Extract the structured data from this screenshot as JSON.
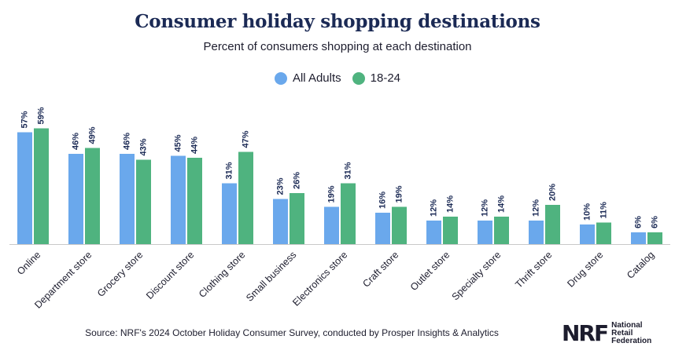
{
  "header": {
    "title": "Consumer holiday shopping destinations",
    "subtitle": "Percent of consumers shopping at each destination"
  },
  "footer": {
    "source": "Source: NRF's 2024 October Holiday Consumer Survey, conducted by Prosper Insights & Analytics"
  },
  "logo": {
    "mark": "NRF",
    "line1": "National",
    "line2": "Retail",
    "line3": "Federation"
  },
  "colors": {
    "all_adults": "#6aa8ec",
    "age_18_24": "#4fb37f",
    "value_label": "#1b2a55",
    "axis": "#c8c8c8"
  },
  "chart_data": {
    "type": "bar",
    "title": "Consumer holiday shopping destinations",
    "subtitle": "Percent of consumers shopping at each destination",
    "legend_position": "top-center",
    "grid": false,
    "ylim": [
      0,
      60
    ],
    "value_suffix": "%",
    "categories": [
      "Online",
      "Department store",
      "Grocery store",
      "Discount store",
      "Clothing store",
      "Small business",
      "Electronics store",
      "Craft store",
      "Outlet store",
      "Specialty store",
      "Thrift store",
      "Drug store",
      "Catalog"
    ],
    "series": [
      {
        "name": "All Adults",
        "values": [
          57,
          46,
          46,
          45,
          31,
          23,
          19,
          16,
          12,
          12,
          12,
          10,
          6
        ]
      },
      {
        "name": "18-24",
        "values": [
          59,
          49,
          43,
          44,
          47,
          26,
          31,
          19,
          14,
          14,
          20,
          11,
          6
        ]
      }
    ]
  }
}
